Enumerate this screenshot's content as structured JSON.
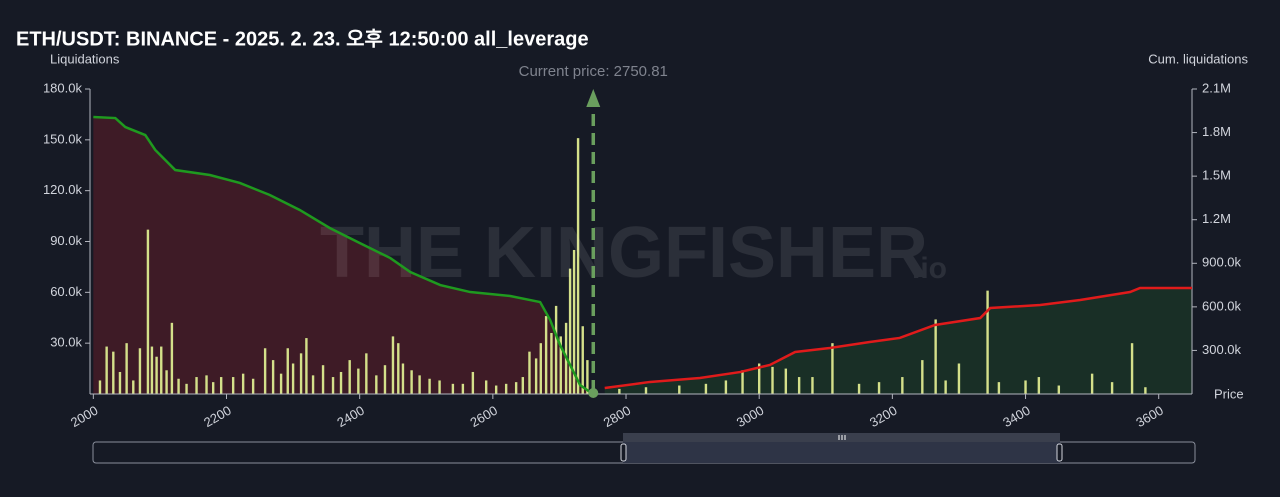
{
  "chart_data": {
    "type": "combo",
    "title": "ETH/USDT: BINANCE - 2025. 2. 23. 오후 12:50:00 all_leverage",
    "y_label": "Liquidations",
    "y2_label": "Cum. liquidations",
    "x_label": "Price",
    "watermark": "THE KINGFISHER",
    "watermark_suffix": ".io",
    "annotation": {
      "text": "Current price: 2750.81",
      "x": 2750.81,
      "color": "#6a9f5e"
    },
    "xlim": [
      1995,
      3650
    ],
    "xticks": [
      2000,
      2200,
      2400,
      2600,
      2800,
      3000,
      3200,
      3400,
      3600
    ],
    "ylim": [
      0,
      180000
    ],
    "yticks": [
      {
        "value": 30000,
        "label": "30.0k"
      },
      {
        "value": 60000,
        "label": "60.0k"
      },
      {
        "value": 90000,
        "label": "90.0k"
      },
      {
        "value": 120000,
        "label": "120.0k"
      },
      {
        "value": 150000,
        "label": "150.0k"
      },
      {
        "value": 180000,
        "label": "180.0k"
      }
    ],
    "y2lim": [
      0,
      2100000
    ],
    "y2ticks": [
      {
        "value": 300000,
        "label": "300.0k"
      },
      {
        "value": 600000,
        "label": "600.0k"
      },
      {
        "value": 900000,
        "label": "900.0k"
      },
      {
        "value": 1200000,
        "label": "1.2M"
      },
      {
        "value": 1500000,
        "label": "1.5M"
      },
      {
        "value": 1800000,
        "label": "1.8M"
      },
      {
        "value": 2100000,
        "label": "2.1M"
      }
    ],
    "series": [
      {
        "type": "bar",
        "color": "#d4e08a",
        "x": [
          2010,
          2020,
          2030,
          2040,
          2050,
          2060,
          2070,
          2082,
          2088,
          2095,
          2102,
          2110,
          2118,
          2128,
          2140,
          2155,
          2170,
          2180,
          2192,
          2210,
          2225,
          2240,
          2258,
          2270,
          2282,
          2292,
          2300,
          2312,
          2320,
          2330,
          2345,
          2360,
          2372,
          2385,
          2398,
          2410,
          2425,
          2438,
          2450,
          2458,
          2465,
          2478,
          2490,
          2505,
          2520,
          2540,
          2555,
          2570,
          2590,
          2605,
          2620,
          2635,
          2645,
          2655,
          2665,
          2672,
          2680,
          2688,
          2695,
          2702,
          2710,
          2716,
          2722,
          2728,
          2735,
          2742,
          2790,
          2830,
          2880,
          2920,
          2950,
          2975,
          3000,
          3020,
          3040,
          3060,
          3080,
          3110,
          3150,
          3180,
          3215,
          3245,
          3265,
          3280,
          3300,
          3343,
          3360,
          3400,
          3420,
          3450,
          3500,
          3530,
          3560,
          3580
        ],
        "values": [
          8000,
          28000,
          25000,
          13000,
          30000,
          8000,
          27000,
          97000,
          28000,
          22000,
          28000,
          14000,
          42000,
          9000,
          6000,
          10000,
          11000,
          7000,
          10000,
          10000,
          12000,
          9000,
          27000,
          20000,
          12000,
          27000,
          18000,
          24000,
          33000,
          11000,
          17000,
          10000,
          13000,
          20000,
          15000,
          24000,
          11000,
          17000,
          34000,
          30000,
          18000,
          14000,
          11000,
          9000,
          8000,
          6000,
          6000,
          13000,
          8000,
          5000,
          6000,
          7000,
          10000,
          25000,
          21000,
          30000,
          46000,
          36000,
          52000,
          34000,
          42000,
          74000,
          85000,
          151000,
          40000,
          20000,
          3000,
          4000,
          5000,
          6000,
          8000,
          14000,
          18000,
          16000,
          15000,
          10000,
          10000,
          30000,
          6000,
          7000,
          10000,
          20000,
          44000,
          8000,
          18000,
          61000,
          7000,
          8000,
          10000,
          5000,
          12000,
          7000,
          30000,
          4000
        ]
      },
      {
        "type": "line",
        "axis": "y2",
        "color": "#1f9a1f",
        "fill": "rgba(110,28,40,0.45)",
        "x": [
          2000,
          2033,
          2048,
          2078,
          2093,
          2123,
          2175,
          2220,
          2265,
          2310,
          2355,
          2400,
          2446,
          2476,
          2521,
          2566,
          2626,
          2671,
          2686,
          2701,
          2716,
          2731,
          2750
        ],
        "values": [
          1907000,
          1900000,
          1838000,
          1783000,
          1680000,
          1542000,
          1508000,
          1453000,
          1370000,
          1267000,
          1143000,
          1040000,
          936000,
          840000,
          750000,
          702000,
          675000,
          633000,
          510000,
          337000,
          200000,
          62000,
          0
        ]
      },
      {
        "type": "line",
        "axis": "y2",
        "color": "#e01b1b",
        "fill": "rgba(30,80,40,0.4)",
        "x": [
          2768,
          2836,
          2911,
          2971,
          3016,
          3054,
          3106,
          3166,
          3211,
          3264,
          3332,
          3347,
          3422,
          3482,
          3557,
          3572,
          3650
        ],
        "values": [
          41000,
          83000,
          110000,
          151000,
          200000,
          289000,
          317000,
          358000,
          386000,
          475000,
          523000,
          592000,
          613000,
          647000,
          702000,
          730000,
          730000
        ]
      }
    ]
  }
}
